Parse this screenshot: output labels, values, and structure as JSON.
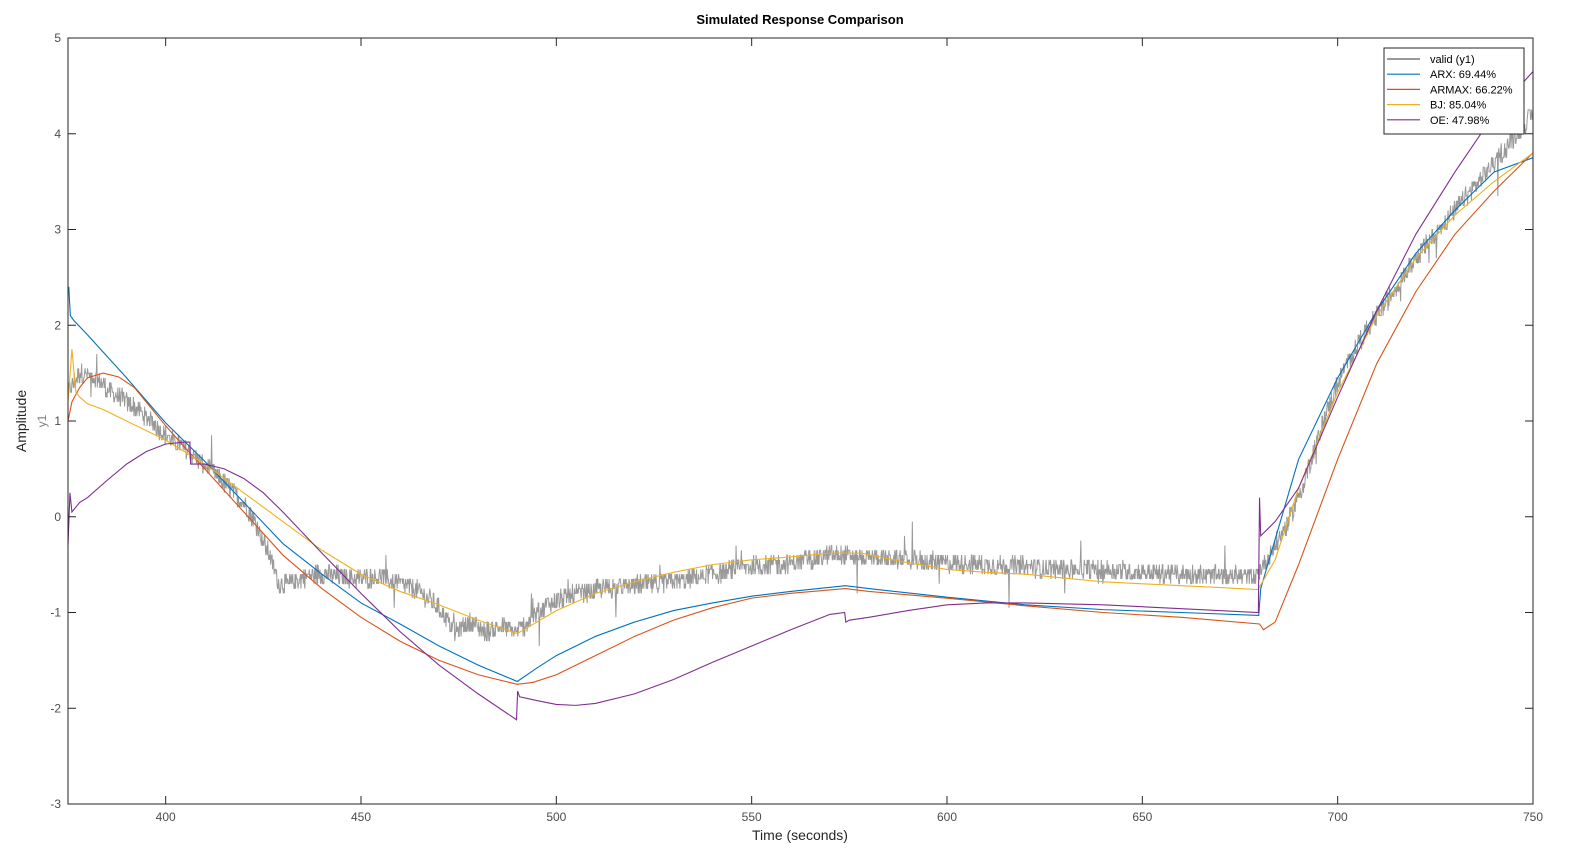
{
  "chart_data": {
    "type": "line",
    "title": "Simulated Response Comparison",
    "xlabel": "Time (seconds)",
    "ylabel": "Amplitude",
    "output_label": "y1",
    "xlim": [
      375,
      750
    ],
    "ylim": [
      -3,
      5
    ],
    "x_ticks": [
      400,
      450,
      500,
      550,
      600,
      650,
      700,
      750
    ],
    "y_ticks": [
      -3,
      -2,
      -1,
      0,
      1,
      2,
      3,
      4,
      5
    ],
    "grid": false,
    "legend_position": "top-right",
    "series": [
      {
        "name": "valid (y1)",
        "color": "#999999",
        "style": "noisy",
        "noise": 0.1,
        "x": [
          375,
          378,
          382,
          386,
          390,
          395,
          400,
          405,
          410,
          415,
          420,
          424,
          427,
          429,
          432,
          436,
          440,
          445,
          450,
          455,
          460,
          465,
          470,
          474,
          478,
          482,
          486,
          490,
          494,
          498,
          502,
          506,
          512,
          520,
          530,
          540,
          550,
          560,
          570,
          580,
          590,
          600,
          610,
          620,
          630,
          640,
          650,
          660,
          670,
          679,
          681,
          684,
          688,
          692,
          696,
          700,
          705,
          710,
          715,
          720,
          725,
          730,
          735,
          740,
          745,
          750
        ],
        "y": [
          1.3,
          1.5,
          1.45,
          1.3,
          1.2,
          1.05,
          0.85,
          0.7,
          0.55,
          0.35,
          0.15,
          -0.15,
          -0.45,
          -0.7,
          -0.7,
          -0.62,
          -0.6,
          -0.62,
          -0.65,
          -0.62,
          -0.7,
          -0.78,
          -0.95,
          -1.2,
          -1.1,
          -1.2,
          -1.15,
          -1.2,
          -1.05,
          -0.9,
          -0.85,
          -0.8,
          -0.75,
          -0.72,
          -0.68,
          -0.6,
          -0.52,
          -0.48,
          -0.4,
          -0.42,
          -0.45,
          -0.48,
          -0.5,
          -0.52,
          -0.55,
          -0.55,
          -0.58,
          -0.6,
          -0.62,
          -0.62,
          -0.5,
          -0.3,
          0.0,
          0.45,
          0.95,
          1.4,
          1.8,
          2.1,
          2.4,
          2.7,
          2.95,
          3.2,
          3.45,
          3.7,
          3.95,
          4.2
        ]
      },
      {
        "name": "ARX: 69.44%",
        "color": "#0072BD",
        "x": [
          375,
          375.2,
          375.6,
          376.5,
          380,
          390,
          400,
          410,
          420,
          430,
          440,
          450,
          460,
          470,
          480,
          490,
          495,
          500,
          510,
          520,
          530,
          540,
          550,
          560,
          574,
          580,
          600,
          620,
          640,
          660,
          679.8,
          680.3,
          690,
          700,
          710,
          720,
          730,
          740,
          750
        ],
        "y": [
          2.35,
          2.4,
          2.1,
          2.05,
          1.9,
          1.45,
          0.98,
          0.58,
          0.15,
          -0.28,
          -0.6,
          -0.9,
          -1.12,
          -1.35,
          -1.55,
          -1.72,
          -1.58,
          -1.45,
          -1.25,
          -1.1,
          -0.98,
          -0.9,
          -0.83,
          -0.78,
          -0.72,
          -0.75,
          -0.84,
          -0.92,
          -0.97,
          -1.0,
          -1.03,
          -0.75,
          0.6,
          1.45,
          2.15,
          2.75,
          3.2,
          3.6,
          3.75
        ]
      },
      {
        "name": "ARMAX: 66.22%",
        "color": "#D95319",
        "x": [
          375,
          376,
          378,
          380,
          384,
          388,
          392,
          396,
          400,
          405,
          410,
          420,
          430,
          440,
          450,
          460,
          470,
          480,
          490,
          494,
          500,
          510,
          520,
          530,
          540,
          550,
          560,
          574,
          580,
          600,
          620,
          640,
          660,
          680,
          681,
          684,
          690,
          700,
          710,
          720,
          730,
          740,
          750
        ],
        "y": [
          1.0,
          1.2,
          1.35,
          1.45,
          1.5,
          1.46,
          1.35,
          1.15,
          0.95,
          0.72,
          0.5,
          0.05,
          -0.4,
          -0.75,
          -1.05,
          -1.3,
          -1.5,
          -1.65,
          -1.75,
          -1.73,
          -1.65,
          -1.45,
          -1.25,
          -1.08,
          -0.95,
          -0.85,
          -0.8,
          -0.75,
          -0.78,
          -0.85,
          -0.93,
          -1.0,
          -1.05,
          -1.12,
          -1.18,
          -1.1,
          -0.5,
          0.6,
          1.6,
          2.35,
          2.95,
          3.4,
          3.8
        ]
      },
      {
        "name": "BJ: 85.04%",
        "color": "#EDB120",
        "x": [
          375,
          376,
          377,
          378,
          380,
          384,
          390,
          400,
          410,
          420,
          430,
          440,
          450,
          460,
          470,
          480,
          490,
          500,
          510,
          520,
          530,
          540,
          550,
          560,
          570,
          578,
          590,
          600,
          610,
          620,
          630,
          640,
          650,
          660,
          670,
          679.5,
          680.2,
          684,
          690,
          700,
          710,
          720,
          730,
          740,
          750
        ],
        "y": [
          1.2,
          1.75,
          1.3,
          1.25,
          1.18,
          1.12,
          1.0,
          0.8,
          0.55,
          0.25,
          -0.05,
          -0.35,
          -0.6,
          -0.78,
          -0.92,
          -1.08,
          -1.22,
          -0.98,
          -0.8,
          -0.68,
          -0.58,
          -0.5,
          -0.45,
          -0.42,
          -0.38,
          -0.38,
          -0.48,
          -0.55,
          -0.58,
          -0.6,
          -0.64,
          -0.68,
          -0.7,
          -0.72,
          -0.74,
          -0.76,
          -0.72,
          -0.45,
          0.3,
          1.3,
          2.1,
          2.7,
          3.15,
          3.5,
          3.8
        ]
      },
      {
        "name": "OE: 47.98%",
        "color": "#7E2F8E",
        "x": [
          375,
          375.5,
          376,
          377,
          378,
          380,
          385,
          390,
          395,
          400,
          405,
          406.2,
          406.4,
          410,
          415,
          420,
          425,
          430,
          440,
          450,
          460,
          470,
          480,
          489.8,
          490.1,
          490.6,
          495,
          500,
          505,
          510,
          520,
          530,
          540,
          550,
          560,
          570,
          573.8,
          574.1,
          575,
          580,
          590,
          600,
          610,
          620,
          640,
          660,
          679.7,
          680,
          680.3,
          684,
          690,
          700,
          710,
          720,
          730,
          740,
          750
        ],
        "y": [
          -0.3,
          0.25,
          0.05,
          0.1,
          0.15,
          0.2,
          0.38,
          0.55,
          0.68,
          0.76,
          0.78,
          0.78,
          0.55,
          0.55,
          0.5,
          0.4,
          0.25,
          0.05,
          -0.38,
          -0.8,
          -1.2,
          -1.55,
          -1.85,
          -2.12,
          -1.82,
          -1.88,
          -1.92,
          -1.96,
          -1.97,
          -1.95,
          -1.85,
          -1.7,
          -1.52,
          -1.35,
          -1.18,
          -1.02,
          -1.0,
          -1.1,
          -1.08,
          -1.05,
          -0.98,
          -0.92,
          -0.9,
          -0.9,
          -0.92,
          -0.96,
          -1.0,
          0.2,
          -0.2,
          -0.05,
          0.3,
          1.25,
          2.15,
          2.95,
          3.6,
          4.2,
          4.65
        ]
      }
    ]
  }
}
